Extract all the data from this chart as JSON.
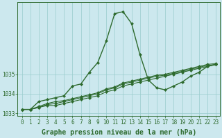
{
  "xlabel": "Graphe pression niveau de la mer (hPa)",
  "bg_color": "#cce8ee",
  "grid_color": "#99cccc",
  "line_color": "#2d6a2d",
  "hours": [
    0,
    1,
    2,
    3,
    4,
    5,
    6,
    7,
    8,
    9,
    10,
    11,
    12,
    13,
    14,
    15,
    16,
    17,
    18,
    19,
    20,
    21,
    22,
    23
  ],
  "series": [
    [
      1033.2,
      1033.2,
      1033.6,
      1033.7,
      1033.8,
      1033.9,
      1034.4,
      1034.5,
      1035.1,
      1035.6,
      1036.7,
      1038.1,
      1038.2,
      1037.6,
      1036.0,
      1034.7,
      1034.3,
      1034.2,
      1034.4,
      1034.6,
      1034.9,
      1035.1,
      1035.4,
      1035.5
    ],
    [
      1033.2,
      1033.2,
      1033.3,
      1033.4,
      1033.4,
      1033.5,
      1033.6,
      1033.7,
      1033.8,
      1033.9,
      1034.1,
      1034.2,
      1034.4,
      1034.5,
      1034.6,
      1034.7,
      1034.8,
      1034.9,
      1035.0,
      1035.1,
      1035.2,
      1035.3,
      1035.4,
      1035.5
    ],
    [
      1033.2,
      1033.2,
      1033.3,
      1033.45,
      1033.5,
      1033.6,
      1033.7,
      1033.8,
      1033.9,
      1034.0,
      1034.2,
      1034.3,
      1034.5,
      1034.6,
      1034.7,
      1034.8,
      1034.9,
      1034.95,
      1035.05,
      1035.15,
      1035.25,
      1035.35,
      1035.45,
      1035.5
    ],
    [
      1033.2,
      1033.2,
      1033.35,
      1033.5,
      1033.6,
      1033.65,
      1033.75,
      1033.85,
      1033.95,
      1034.05,
      1034.25,
      1034.35,
      1034.55,
      1034.65,
      1034.75,
      1034.85,
      1034.95,
      1035.0,
      1035.1,
      1035.2,
      1035.3,
      1035.4,
      1035.5,
      1035.55
    ]
  ],
  "ylim": [
    1032.85,
    1038.7
  ],
  "yticks": [
    1033,
    1034,
    1035
  ],
  "xticks": [
    0,
    1,
    2,
    3,
    4,
    5,
    6,
    7,
    8,
    9,
    10,
    11,
    12,
    13,
    14,
    15,
    16,
    17,
    18,
    19,
    20,
    21,
    22,
    23
  ],
  "label_fontsize": 7,
  "tick_fontsize": 5.5
}
